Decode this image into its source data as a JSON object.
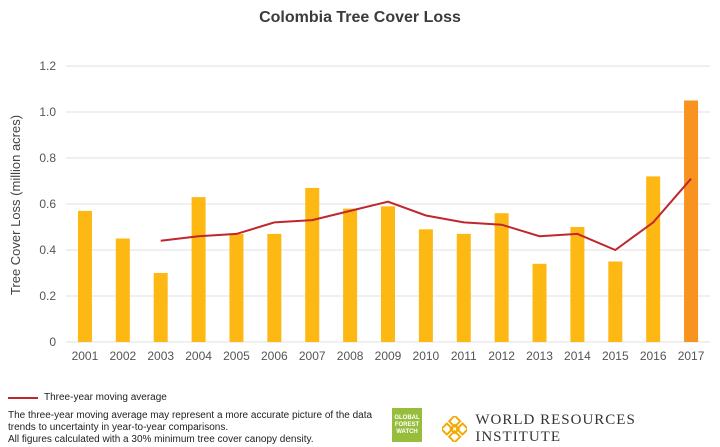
{
  "chart_data": {
    "type": "bar",
    "title": "Colombia Tree Cover Loss",
    "ylabel": "Tree Cover Loss (million acres)",
    "xlabel": "",
    "ylim": [
      0,
      1.2
    ],
    "yticks": [
      "0",
      "0.2",
      "0.4",
      "0.6",
      "0.8",
      "1.0",
      "1.2"
    ],
    "grid": true,
    "categories": [
      "2001",
      "2002",
      "2003",
      "2004",
      "2005",
      "2006",
      "2007",
      "2008",
      "2009",
      "2010",
      "2011",
      "2012",
      "2013",
      "2014",
      "2015",
      "2016",
      "2017"
    ],
    "values": [
      0.57,
      0.45,
      0.3,
      0.63,
      0.47,
      0.47,
      0.67,
      0.58,
      0.59,
      0.49,
      0.47,
      0.56,
      0.34,
      0.5,
      0.35,
      0.72,
      1.05
    ],
    "bar_color": "#fdb813",
    "highlight_color": "#f7931e",
    "highlight_category": "2017",
    "moving_average": {
      "name": "Three-year moving average",
      "color": "#c0272d",
      "start_index": 2,
      "values": [
        0.44,
        0.46,
        0.47,
        0.52,
        0.53,
        0.57,
        0.61,
        0.55,
        0.52,
        0.51,
        0.46,
        0.47,
        0.4,
        0.52,
        0.71
      ]
    }
  },
  "footer": {
    "legend_label": "Three-year moving average",
    "note1": "The three-year moving average may represent a more accurate picture of the data trends to uncertainty in year-to-year comparisons.",
    "note2": "All figures calculated with a 30% minimum tree cover canopy density."
  },
  "logos": {
    "gfw_line1": "GLOBAL",
    "gfw_line2": "FOREST",
    "gfw_line3": "WATCH",
    "wri_text": "WORLD RESOURCES INSTITUTE"
  }
}
